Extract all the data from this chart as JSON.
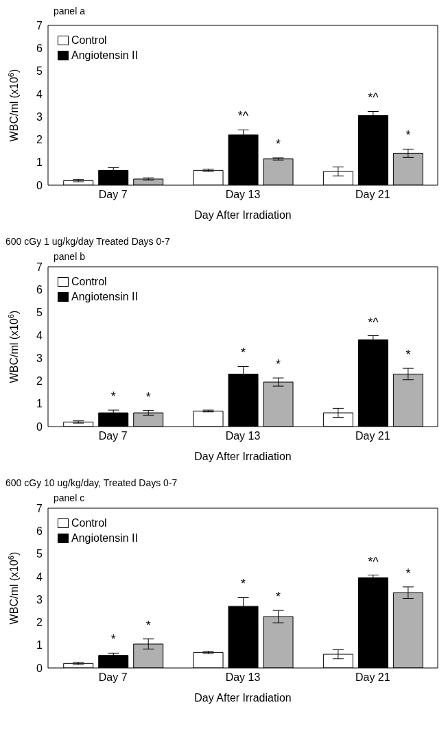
{
  "chart_data": [
    {
      "type": "bar",
      "title": "panel a",
      "xlabel": "Day After Irradiation",
      "ylabel": "WBC/ml (x10$^{6}$)",
      "categories": [
        "Day 7",
        "Day 13",
        "Day 21"
      ],
      "ylim": [
        0,
        7
      ],
      "yticks": [
        0,
        1,
        2,
        3,
        4,
        5,
        6,
        7
      ],
      "grid": false,
      "legend": "top left",
      "series": [
        {
          "name": "Control",
          "color": "#ffffff",
          "values": [
            0.2,
            0.65,
            0.6
          ],
          "errors": [
            0.05,
            0.05,
            0.2
          ]
        },
        {
          "name": "Angiotensin II",
          "color": "#000000",
          "values": [
            0.65,
            2.2,
            3.05
          ],
          "errors": [
            0.12,
            0.22,
            0.18
          ],
          "value_labels": [
            null,
            "*^",
            "*^"
          ]
        },
        {
          "color": "#b0b0b0",
          "values": [
            0.27,
            1.15,
            1.4
          ],
          "errors": [
            0.05,
            0.05,
            0.18
          ],
          "value_labels": [
            null,
            "*",
            "*"
          ]
        }
      ]
    },
    {
      "type": "bar",
      "title": "600 cGy 1 ug/kg/day Treated Days 0-7",
      "subtitle": "panel b",
      "xlabel": "Day After Irradiation",
      "ylabel": "WBC/ml (x10$^{6}$)",
      "categories": [
        "Day 7",
        "Day 13",
        "Day 21"
      ],
      "ylim": [
        0,
        7
      ],
      "yticks": [
        0,
        1,
        2,
        3,
        4,
        5,
        6,
        7
      ],
      "grid": false,
      "legend": "top left",
      "series": [
        {
          "name": "Control",
          "color": "#ffffff",
          "values": [
            0.2,
            0.68,
            0.6
          ],
          "errors": [
            0.05,
            0.04,
            0.2
          ]
        },
        {
          "name": "Angiotensin II",
          "color": "#000000",
          "values": [
            0.6,
            2.3,
            3.8
          ],
          "errors": [
            0.12,
            0.33,
            0.18
          ],
          "value_labels": [
            "*",
            "*",
            "*^"
          ]
        },
        {
          "color": "#b0b0b0",
          "values": [
            0.6,
            1.95,
            2.3
          ],
          "errors": [
            0.1,
            0.18,
            0.25
          ],
          "value_labels": [
            "*",
            "*",
            "*"
          ]
        }
      ]
    },
    {
      "type": "bar",
      "title": "600 cGy 10 ug/kg/day, Treated Days 0-7",
      "subtitle": "panel c",
      "xlabel": "Day After Irradiation",
      "ylabel": "WBC/ml (x10$^{6}$)",
      "categories": [
        "Day 7",
        "Day 13",
        "Day 21"
      ],
      "ylim": [
        0,
        7
      ],
      "yticks": [
        0,
        1,
        2,
        3,
        4,
        5,
        6,
        7
      ],
      "grid": false,
      "legend": "top left",
      "series": [
        {
          "name": "Control",
          "color": "#ffffff",
          "values": [
            0.2,
            0.68,
            0.6
          ],
          "errors": [
            0.05,
            0.05,
            0.2
          ]
        },
        {
          "name": "Angiotensin II",
          "color": "#000000",
          "values": [
            0.55,
            2.7,
            3.95
          ],
          "errors": [
            0.1,
            0.38,
            0.12
          ],
          "value_labels": [
            "*",
            "*",
            "*^"
          ]
        },
        {
          "color": "#b0b0b0",
          "values": [
            1.05,
            2.25,
            3.3
          ],
          "errors": [
            0.22,
            0.27,
            0.25
          ],
          "value_labels": [
            "*",
            "*",
            "*"
          ]
        }
      ]
    }
  ]
}
